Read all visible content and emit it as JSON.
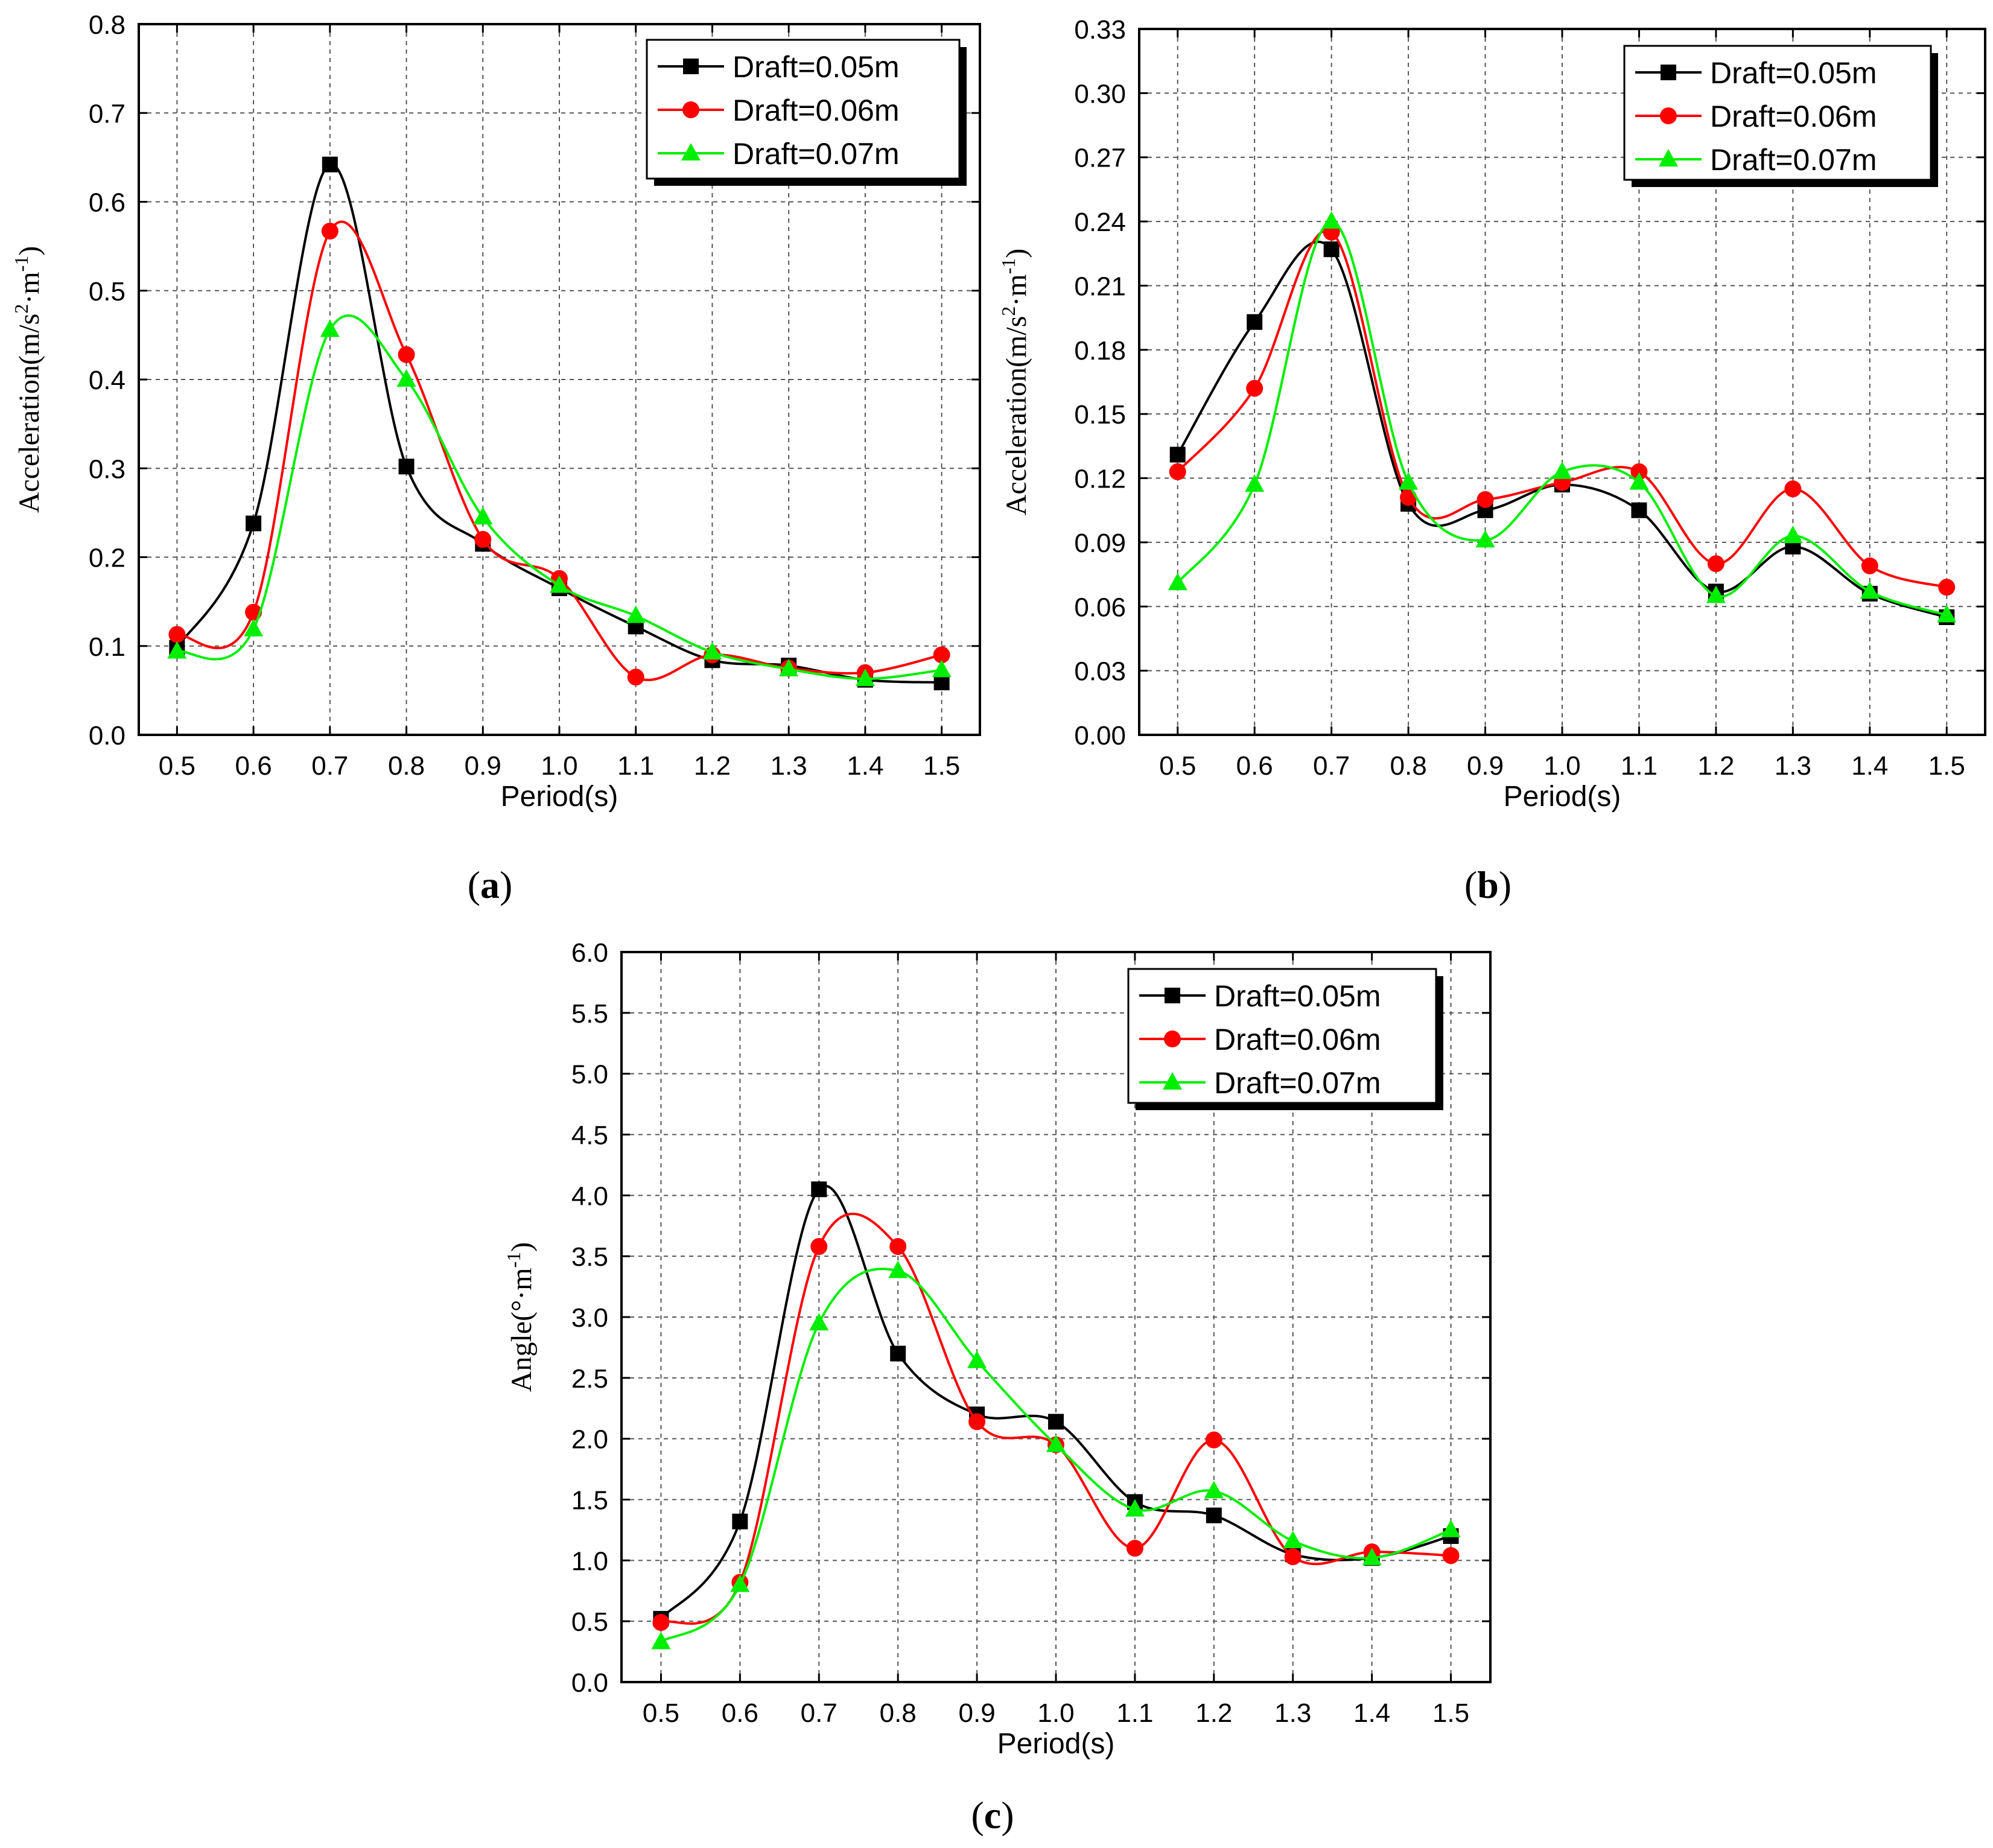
{
  "chart_data": [
    {
      "id": "a",
      "type": "line",
      "panel_label": "a",
      "xlabel": "Period(s)",
      "ylabel_main": "Acceleration(m/s",
      "ylabel_sup1": "2",
      "ylabel_mid": "·m",
      "ylabel_sup2": "-1",
      "ylabel_end": ")",
      "x": [
        0.5,
        0.6,
        0.7,
        0.8,
        0.9,
        1.0,
        1.1,
        1.2,
        1.3,
        1.4,
        1.5
      ],
      "xticks": [
        "0.5",
        "0.6",
        "0.7",
        "0.8",
        "0.9",
        "1.0",
        "1.1",
        "1.2",
        "1.3",
        "1.4",
        "1.5"
      ],
      "xlim": [
        0.45,
        1.55
      ],
      "ylim": [
        0,
        0.8
      ],
      "yticks": [
        "0.0",
        "0.1",
        "0.2",
        "0.3",
        "0.4",
        "0.5",
        "0.6",
        "0.7",
        "0.8"
      ],
      "grid": true,
      "legend_position": "top-right",
      "series": [
        {
          "name": "Draft=0.05m",
          "color": "#000000",
          "marker": "square",
          "values": [
            0.098,
            0.238,
            0.642,
            0.302,
            0.215,
            0.165,
            0.122,
            0.084,
            0.078,
            0.062,
            0.059
          ]
        },
        {
          "name": "Draft=0.06m",
          "color": "#ff0000",
          "marker": "circle",
          "values": [
            0.113,
            0.138,
            0.567,
            0.428,
            0.22,
            0.176,
            0.065,
            0.09,
            0.075,
            0.07,
            0.09
          ]
        },
        {
          "name": "Draft=0.07m",
          "color": "#00ee00",
          "marker": "triangle",
          "values": [
            0.094,
            0.119,
            0.456,
            0.4,
            0.245,
            0.168,
            0.134,
            0.093,
            0.074,
            0.063,
            0.073
          ]
        }
      ]
    },
    {
      "id": "b",
      "type": "line",
      "panel_label": "b",
      "xlabel": "Period(s)",
      "ylabel_main": "Acceleration(m/s",
      "ylabel_sup1": "2",
      "ylabel_mid": "·m",
      "ylabel_sup2": "-1",
      "ylabel_end": ")",
      "x": [
        0.5,
        0.6,
        0.7,
        0.8,
        0.9,
        1.0,
        1.1,
        1.2,
        1.3,
        1.4,
        1.5
      ],
      "xticks": [
        "0.5",
        "0.6",
        "0.7",
        "0.8",
        "0.9",
        "1.0",
        "1.1",
        "1.2",
        "1.3",
        "1.4",
        "1.5"
      ],
      "xlim": [
        0.45,
        1.55
      ],
      "ylim": [
        0,
        0.33
      ],
      "yticks": [
        "0.00",
        "0.03",
        "0.06",
        "0.09",
        "0.12",
        "0.15",
        "0.18",
        "0.21",
        "0.24",
        "0.27",
        "0.30",
        "0.33"
      ],
      "grid": true,
      "legend_position": "top-right",
      "series": [
        {
          "name": "Draft=0.05m",
          "color": "#000000",
          "marker": "square",
          "values": [
            0.131,
            0.193,
            0.227,
            0.108,
            0.105,
            0.117,
            0.105,
            0.067,
            0.088,
            0.066,
            0.055
          ]
        },
        {
          "name": "Draft=0.06m",
          "color": "#ff0000",
          "marker": "circle",
          "values": [
            0.123,
            0.162,
            0.235,
            0.111,
            0.11,
            0.118,
            0.123,
            0.08,
            0.115,
            0.079,
            0.069
          ]
        },
        {
          "name": "Draft=0.07m",
          "color": "#00ee00",
          "marker": "triangle",
          "values": [
            0.071,
            0.117,
            0.24,
            0.118,
            0.091,
            0.123,
            0.118,
            0.065,
            0.093,
            0.067,
            0.056
          ]
        }
      ]
    },
    {
      "id": "c",
      "type": "line",
      "panel_label": "c",
      "xlabel": "Period(s)",
      "ylabel_main": "Angle(°·m",
      "ylabel_sup1": "",
      "ylabel_mid": "",
      "ylabel_sup2": "-1",
      "ylabel_end": ")",
      "x": [
        0.5,
        0.6,
        0.7,
        0.8,
        0.9,
        1.0,
        1.1,
        1.2,
        1.3,
        1.4,
        1.5
      ],
      "xticks": [
        "0.5",
        "0.6",
        "0.7",
        "0.8",
        "0.9",
        "1.0",
        "1.1",
        "1.2",
        "1.3",
        "1.4",
        "1.5"
      ],
      "xlim": [
        0.45,
        1.55
      ],
      "ylim": [
        0,
        6.0
      ],
      "yticks": [
        "0.0",
        "0.5",
        "1.0",
        "1.5",
        "2.0",
        "2.5",
        "3.0",
        "3.5",
        "4.0",
        "4.5",
        "5.0",
        "5.5",
        "6.0"
      ],
      "grid": true,
      "legend_position": "top-right",
      "series": [
        {
          "name": "Draft=0.05m",
          "color": "#000000",
          "marker": "square",
          "values": [
            0.52,
            1.32,
            4.05,
            2.7,
            2.2,
            2.14,
            1.48,
            1.37,
            1.05,
            1.02,
            1.2
          ]
        },
        {
          "name": "Draft=0.06m",
          "color": "#ff0000",
          "marker": "circle",
          "values": [
            0.49,
            0.82,
            3.58,
            3.58,
            2.14,
            1.95,
            1.1,
            1.99,
            1.03,
            1.07,
            1.04
          ]
        },
        {
          "name": "Draft=0.07m",
          "color": "#00ee00",
          "marker": "triangle",
          "values": [
            0.33,
            0.8,
            2.95,
            3.38,
            2.64,
            1.95,
            1.42,
            1.57,
            1.16,
            1.02,
            1.25
          ]
        }
      ]
    }
  ]
}
